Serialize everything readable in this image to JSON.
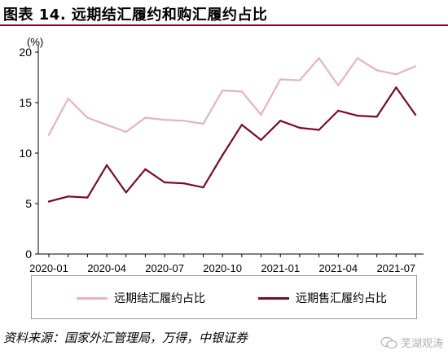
{
  "title": "图表 14. 远期结汇履约和购汇履约占比",
  "source": "资料来源：国家外汇管理局，万得，中银证券",
  "watermark": "芜湖观涛",
  "colors": {
    "accent": "#8b0a2f",
    "series_settlement": "#e8b4b8",
    "series_purchase": "#7a0a28"
  },
  "chart_data": {
    "type": "line",
    "ylabel": "(%)",
    "ylim": [
      0,
      20
    ],
    "yticks": [
      0,
      5,
      10,
      15,
      20
    ],
    "x": [
      "2020-01",
      "2020-02",
      "2020-03",
      "2020-04",
      "2020-05",
      "2020-06",
      "2020-07",
      "2020-08",
      "2020-09",
      "2020-10",
      "2020-11",
      "2020-12",
      "2021-01",
      "2021-02",
      "2021-03",
      "2021-04",
      "2021-05",
      "2021-06",
      "2021-07",
      "2021-08"
    ],
    "xticks": [
      "2020-01",
      "2020-04",
      "2020-07",
      "2020-10",
      "2021-01",
      "2021-04",
      "2021-07"
    ],
    "grid": false,
    "legend": "bottom",
    "series": [
      {
        "name": "远期结汇履约占比",
        "color": "#e8b4b8",
        "values": [
          11.8,
          15.4,
          13.5,
          12.8,
          12.1,
          13.5,
          13.3,
          13.2,
          12.9,
          16.2,
          16.1,
          13.8,
          17.3,
          17.2,
          19.4,
          16.7,
          19.4,
          18.2,
          17.8,
          18.6
        ]
      },
      {
        "name": "远期售汇履约占比",
        "color": "#7a0a28",
        "values": [
          5.2,
          5.7,
          5.6,
          8.8,
          6.1,
          8.4,
          7.1,
          7.0,
          6.6,
          9.8,
          12.8,
          11.3,
          13.2,
          12.5,
          12.3,
          14.2,
          13.7,
          13.6,
          16.5,
          13.8
        ]
      }
    ]
  }
}
